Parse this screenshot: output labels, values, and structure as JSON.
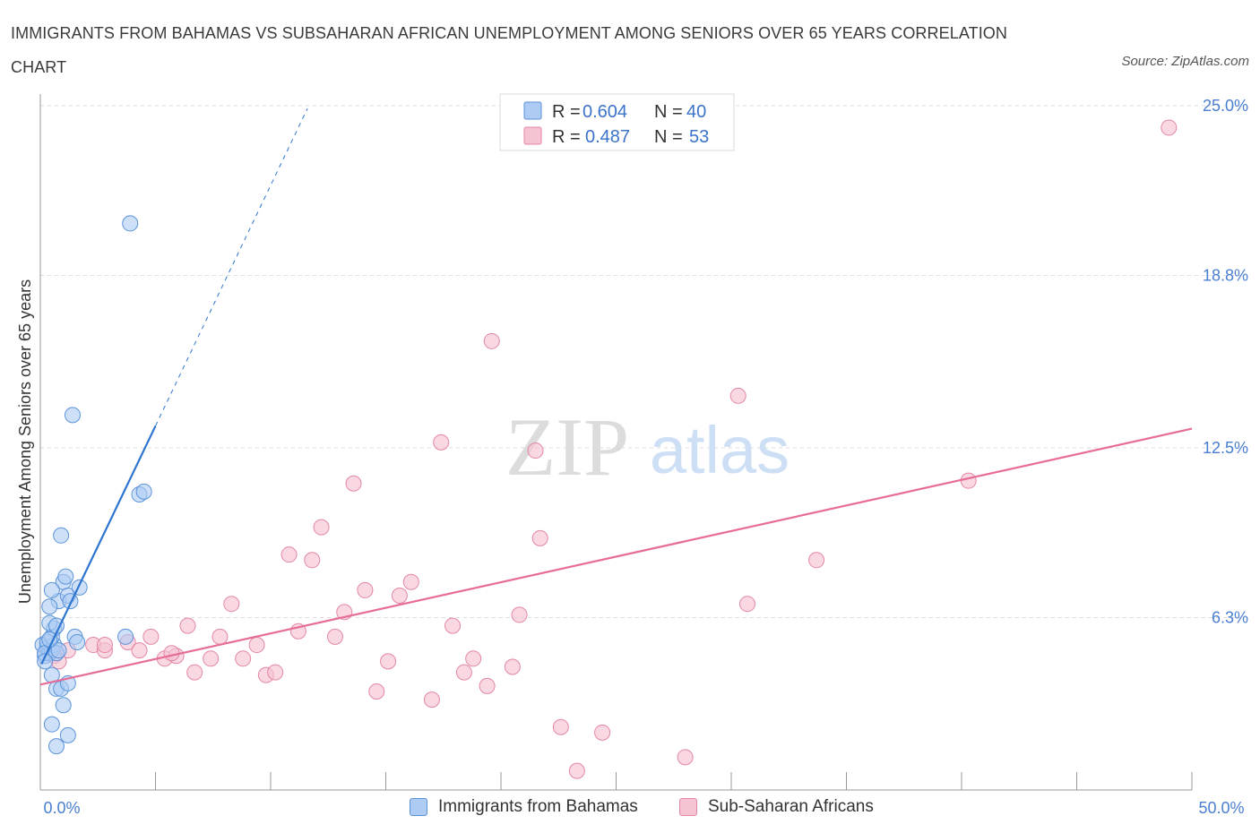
{
  "title": "IMMIGRANTS FROM BAHAMAS VS SUBSAHARAN AFRICAN UNEMPLOYMENT AMONG SENIORS OVER 65 YEARS CORRELATION CHART",
  "source": "Source: ZipAtlas.com",
  "watermark": {
    "zip": "ZIP",
    "atlas": "atlas"
  },
  "colors": {
    "blue_fill": "#aecbf3",
    "blue_stroke": "#5b93d9",
    "blue_line": "#2e75d0",
    "pink_fill": "#f6c3d3",
    "pink_stroke": "#e387a5",
    "pink_line": "#e56d96",
    "tick_blue": "#4a7ed0",
    "grid": "#dddddd"
  },
  "legend_box": [
    {
      "r_label": "R = ",
      "r_value": "0.604",
      "n_label": "N = ",
      "n_value": "40"
    },
    {
      "r_label": "R = ",
      "r_value": "0.487",
      "n_label": "N = ",
      "n_value": "53"
    }
  ],
  "chart_data": {
    "type": "scatter",
    "ylabel": "Unemployment Among Seniors over 65 years",
    "xlim": [
      0,
      50
    ],
    "ylim": [
      0,
      25
    ],
    "x_tick_labels": [
      {
        "value": 0,
        "label": "0.0%"
      },
      {
        "value": 50,
        "label": "50.0%"
      }
    ],
    "y_tick_labels": [
      {
        "value": 6.3,
        "label": "6.3%"
      },
      {
        "value": 12.5,
        "label": "12.5%"
      },
      {
        "value": 18.8,
        "label": "18.8%"
      },
      {
        "value": 25.0,
        "label": "25.0%"
      }
    ],
    "series": [
      {
        "name": "Immigrants from Bahamas",
        "r": 0.604,
        "n": 40,
        "trend": {
          "x0": 0.05,
          "y0": 4.6,
          "x1": 5.0,
          "y1": 13.3,
          "x_dash_end": 11.6
        },
        "points": [
          [
            0.1,
            5.3
          ],
          [
            0.2,
            4.9
          ],
          [
            0.3,
            5.2
          ],
          [
            0.4,
            5.0
          ],
          [
            0.3,
            5.4
          ],
          [
            0.5,
            5.1
          ],
          [
            0.2,
            5.0
          ],
          [
            0.6,
            5.3
          ],
          [
            0.7,
            5.0
          ],
          [
            0.8,
            5.1
          ],
          [
            0.5,
            5.6
          ],
          [
            0.6,
            5.9
          ],
          [
            0.4,
            6.1
          ],
          [
            0.7,
            6.0
          ],
          [
            0.8,
            6.9
          ],
          [
            1.0,
            7.6
          ],
          [
            1.1,
            7.8
          ],
          [
            1.2,
            7.1
          ],
          [
            1.3,
            6.9
          ],
          [
            0.5,
            7.3
          ],
          [
            0.4,
            6.7
          ],
          [
            1.5,
            5.6
          ],
          [
            1.6,
            5.4
          ],
          [
            1.7,
            7.4
          ],
          [
            0.9,
            9.3
          ],
          [
            1.4,
            13.7
          ],
          [
            4.3,
            10.8
          ],
          [
            4.5,
            10.9
          ],
          [
            3.9,
            20.7
          ],
          [
            3.7,
            5.6
          ],
          [
            0.5,
            4.2
          ],
          [
            0.7,
            3.7
          ],
          [
            0.9,
            3.7
          ],
          [
            1.2,
            3.9
          ],
          [
            1.0,
            3.1
          ],
          [
            0.5,
            2.4
          ],
          [
            1.2,
            2.0
          ],
          [
            0.7,
            1.6
          ],
          [
            0.2,
            4.7
          ],
          [
            0.4,
            5.5
          ]
        ]
      },
      {
        "name": "Sub-Saharan Africans",
        "r": 0.487,
        "n": 53,
        "trend": {
          "x0": 0,
          "y0": 3.85,
          "x1": 50,
          "y1": 13.2
        },
        "points": [
          [
            0.6,
            4.9
          ],
          [
            1.2,
            5.1
          ],
          [
            2.3,
            5.3
          ],
          [
            2.8,
            5.1
          ],
          [
            3.8,
            5.4
          ],
          [
            4.3,
            5.1
          ],
          [
            4.8,
            5.6
          ],
          [
            5.4,
            4.8
          ],
          [
            5.9,
            4.9
          ],
          [
            6.4,
            6.0
          ],
          [
            6.7,
            4.3
          ],
          [
            7.4,
            4.8
          ],
          [
            7.8,
            5.6
          ],
          [
            8.3,
            6.8
          ],
          [
            8.8,
            4.8
          ],
          [
            9.4,
            5.3
          ],
          [
            9.8,
            4.2
          ],
          [
            10.2,
            4.3
          ],
          [
            10.8,
            8.6
          ],
          [
            11.2,
            5.8
          ],
          [
            11.8,
            8.4
          ],
          [
            12.2,
            9.6
          ],
          [
            12.8,
            5.6
          ],
          [
            13.2,
            6.5
          ],
          [
            13.6,
            11.2
          ],
          [
            14.1,
            7.3
          ],
          [
            14.6,
            3.6
          ],
          [
            15.1,
            4.7
          ],
          [
            15.6,
            7.1
          ],
          [
            16.1,
            7.6
          ],
          [
            17.0,
            3.3
          ],
          [
            17.4,
            12.7
          ],
          [
            17.9,
            6.0
          ],
          [
            18.4,
            4.3
          ],
          [
            18.8,
            4.8
          ],
          [
            19.4,
            3.8
          ],
          [
            19.6,
            16.4
          ],
          [
            20.5,
            4.5
          ],
          [
            20.8,
            6.4
          ],
          [
            21.5,
            12.4
          ],
          [
            21.7,
            9.2
          ],
          [
            22.6,
            2.3
          ],
          [
            23.3,
            0.7
          ],
          [
            24.4,
            2.1
          ],
          [
            28.0,
            1.2
          ],
          [
            30.7,
            6.8
          ],
          [
            30.3,
            14.4
          ],
          [
            33.7,
            8.4
          ],
          [
            40.3,
            11.3
          ],
          [
            49.0,
            24.2
          ],
          [
            2.8,
            5.3
          ],
          [
            5.7,
            5.0
          ],
          [
            0.8,
            4.7
          ]
        ]
      }
    ]
  },
  "bottom_legend": [
    "Immigrants from Bahamas",
    "Sub-Saharan Africans"
  ]
}
